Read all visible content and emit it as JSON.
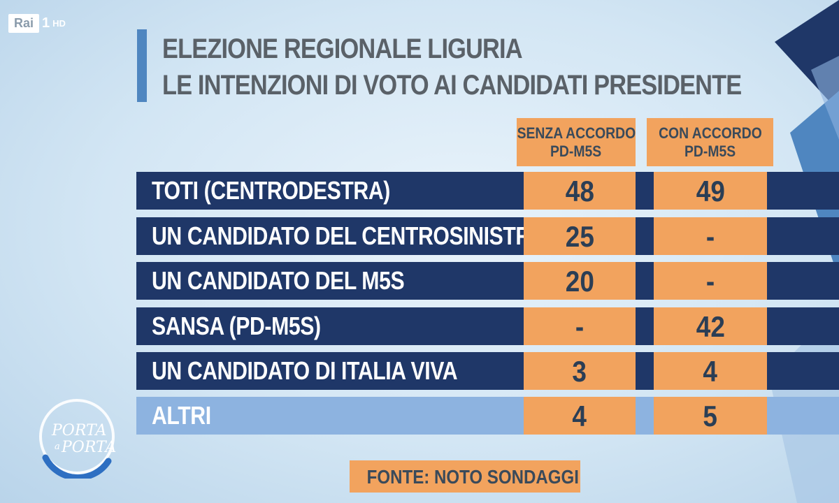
{
  "channel": {
    "name": "Rai",
    "number": "1",
    "quality": "HD"
  },
  "title": {
    "line1": "ELEZIONE REGIONALE LIGURIA",
    "line2": "LE INTENZIONI DI VOTO AI CANDIDATI PRESIDENTE"
  },
  "show_logo": {
    "line1": "PORTA",
    "connector": "a",
    "line2": "PORTA"
  },
  "source": "FONTE: NOTO SONDAGGI",
  "colors": {
    "header_orange": "#f2a35e",
    "row_dark": "#1f3768",
    "row_light": "#8db3e0",
    "accent_blue": "#4f86c0"
  },
  "chart_data": {
    "type": "table",
    "title": "ELEZIONE REGIONALE LIGURIA — LE INTENZIONI DI VOTO AI CANDIDATI PRESIDENTE",
    "columns": [
      {
        "line1": "SENZA ACCORDO",
        "line2": "PD-M5S"
      },
      {
        "line1": "CON ACCORDO",
        "line2": "PD-M5S"
      }
    ],
    "rows": [
      {
        "label": "TOTI (CENTRODESTRA)",
        "values": [
          "48",
          "49"
        ]
      },
      {
        "label": "UN CANDIDATO DEL CENTROSINISTRA",
        "values": [
          "25",
          "-"
        ]
      },
      {
        "label": "UN CANDIDATO DEL M5S",
        "values": [
          "20",
          "-"
        ]
      },
      {
        "label": "SANSA (PD-M5S)",
        "values": [
          "-",
          "42"
        ]
      },
      {
        "label": "UN CANDIDATO DI ITALIA VIVA",
        "values": [
          "3",
          "4"
        ]
      },
      {
        "label": "ALTRI",
        "values": [
          "4",
          "5"
        ]
      }
    ],
    "source": "NOTO SONDAGGI"
  }
}
